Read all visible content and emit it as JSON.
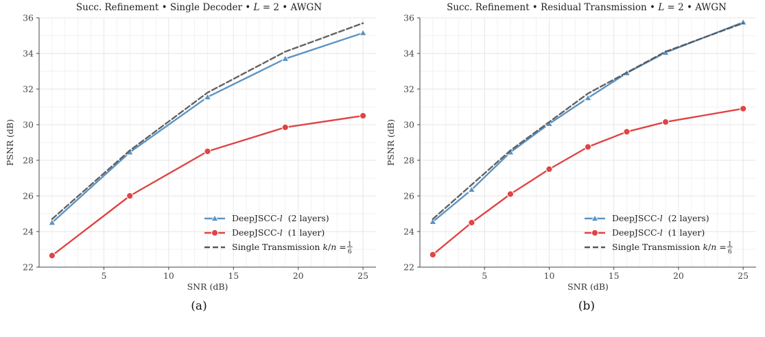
{
  "chart_data": [
    {
      "type": "line",
      "title": "Succ. Refinement • Single Decoder • L = 2 • AWGN",
      "xlabel": "SNR (dB)",
      "ylabel": "PSNR (dB)",
      "caption": "(a)",
      "xlim": [
        0,
        26
      ],
      "ylim": [
        22,
        36
      ],
      "xticks": [
        5,
        10,
        15,
        20,
        25
      ],
      "yticks": [
        22,
        24,
        26,
        28,
        30,
        32,
        34,
        36
      ],
      "grid": true,
      "legend_position": "bottom-right",
      "series": [
        {
          "name": "DeepJSCC-l  (2 layers)",
          "color": "#5b93c4",
          "marker": "triangle",
          "dashed": false,
          "x": [
            1,
            7,
            13,
            19,
            25
          ],
          "y": [
            24.5,
            28.45,
            31.55,
            33.7,
            35.15
          ]
        },
        {
          "name": "DeepJSCC-l  (1 layer)",
          "color": "#e04444",
          "marker": "circle",
          "dashed": false,
          "x": [
            1,
            7,
            13,
            19,
            25
          ],
          "y": [
            22.65,
            26.0,
            28.5,
            29.85,
            30.5
          ]
        },
        {
          "name": "Single Transmission k/n = 1/6",
          "color": "#555555",
          "marker": "none",
          "dashed": true,
          "x": [
            1,
            7,
            13,
            19,
            25
          ],
          "y": [
            24.7,
            28.55,
            31.8,
            34.1,
            35.7
          ]
        }
      ]
    },
    {
      "type": "line",
      "title": "Succ. Refinement • Residual Transmission • L = 2 • AWGN",
      "xlabel": "SNR (dB)",
      "ylabel": "PSNR (dB)",
      "caption": "(b)",
      "xlim": [
        0,
        26
      ],
      "ylim": [
        22,
        36
      ],
      "xticks": [
        5,
        10,
        15,
        20,
        25
      ],
      "yticks": [
        22,
        24,
        26,
        28,
        30,
        32,
        34,
        36
      ],
      "grid": true,
      "legend_position": "bottom-right",
      "series": [
        {
          "name": "DeepJSCC-l  (2 layers)",
          "color": "#5b93c4",
          "marker": "triangle",
          "dashed": false,
          "x": [
            1,
            4,
            7,
            10,
            13,
            16,
            19,
            25
          ],
          "y": [
            24.55,
            26.35,
            28.45,
            30.05,
            31.5,
            32.9,
            34.05,
            35.75
          ]
        },
        {
          "name": "DeepJSCC-l  (1 layer)",
          "color": "#e04444",
          "marker": "circle",
          "dashed": false,
          "x": [
            1,
            4,
            7,
            10,
            13,
            16,
            19,
            25
          ],
          "y": [
            22.7,
            24.5,
            26.1,
            27.5,
            28.75,
            29.6,
            30.15,
            30.9
          ]
        },
        {
          "name": "Single Transmission k/n = 1/6",
          "color": "#555555",
          "marker": "none",
          "dashed": true,
          "x": [
            1,
            7,
            13,
            19,
            25
          ],
          "y": [
            24.7,
            28.55,
            31.75,
            34.1,
            35.7
          ]
        }
      ]
    }
  ]
}
